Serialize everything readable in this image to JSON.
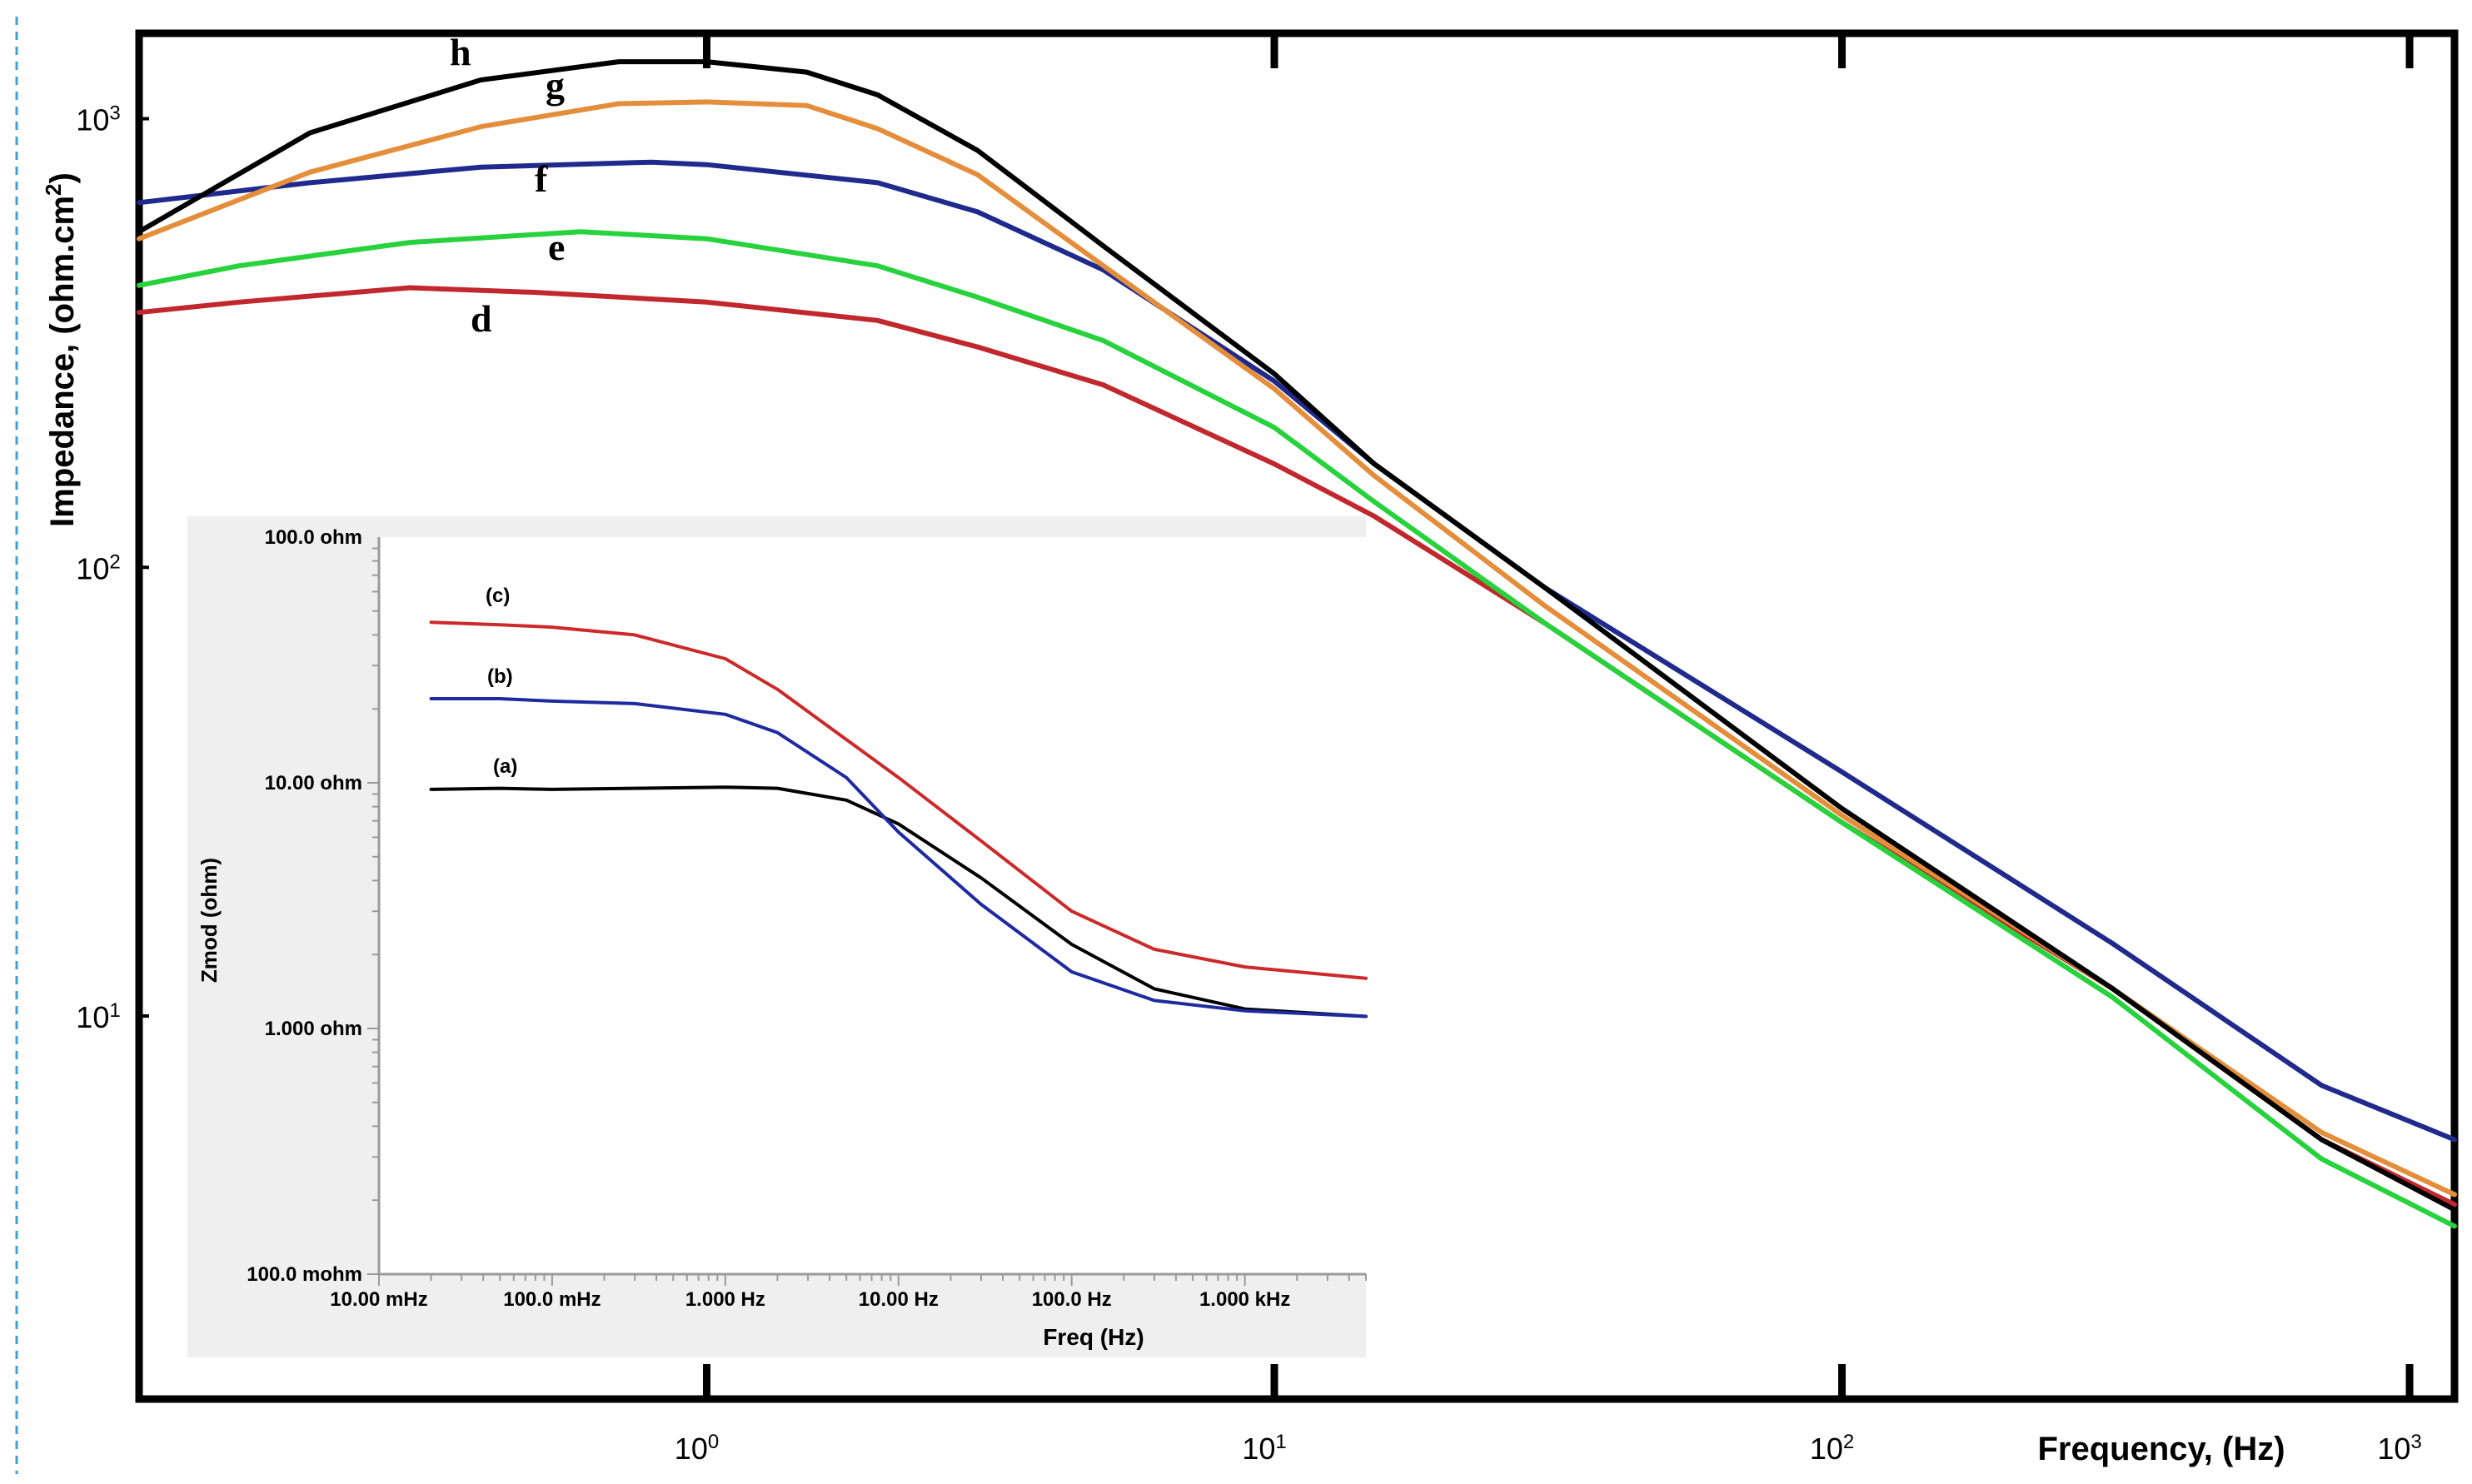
{
  "chart_data": [
    {
      "type": "line",
      "title": "",
      "xlabel": "Frequency, (Hz)",
      "ylabel": "Impedance, (ohm.cm",
      "ylabel_sup": "2",
      "ylabel_end": ")",
      "xscale": "log",
      "yscale": "log",
      "xlim": [
        0.1,
        1200
      ],
      "ylim": [
        1.4,
        1550
      ],
      "x_ticks": [
        {
          "base": "10",
          "exp": "0",
          "value": 1
        },
        {
          "base": "10",
          "exp": "1",
          "value": 10
        },
        {
          "base": "10",
          "exp": "2",
          "value": 100
        },
        {
          "base": "10",
          "exp": "3",
          "value": 1000
        }
      ],
      "y_ticks": [
        {
          "base": "10",
          "exp": "1",
          "value": 10
        },
        {
          "base": "10",
          "exp": "2",
          "value": 100
        },
        {
          "base": "10",
          "exp": "3",
          "value": 1000
        }
      ],
      "grid": false,
      "series": [
        {
          "name": "d",
          "color": "#c0282d",
          "x": [
            0.1,
            0.15,
            0.3,
            0.5,
            1,
            2,
            3,
            5,
            10,
            15,
            30,
            100,
            300,
            700,
            1200
          ],
          "y": [
            370,
            390,
            420,
            410,
            390,
            355,
            310,
            255,
            170,
            130,
            75,
            27,
            11.5,
            5.3,
            3.8
          ]
        },
        {
          "name": "e",
          "color": "#27d23c",
          "x": [
            0.1,
            0.15,
            0.3,
            0.6,
            1,
            2,
            3,
            5,
            10,
            15,
            30,
            100,
            300,
            700,
            1200
          ],
          "y": [
            425,
            470,
            530,
            560,
            540,
            470,
            400,
            320,
            205,
            140,
            75,
            27,
            11.0,
            4.8,
            3.4
          ]
        },
        {
          "name": "f",
          "color": "#1f2a8c",
          "x": [
            0.1,
            0.2,
            0.4,
            0.8,
            1,
            2,
            3,
            5,
            10,
            15,
            30,
            100,
            300,
            700,
            1200
          ],
          "y": [
            650,
            720,
            780,
            800,
            790,
            720,
            620,
            460,
            260,
            170,
            90,
            35,
            14.5,
            7.0,
            5.3
          ]
        },
        {
          "name": "g",
          "color": "#e48e3c",
          "x": [
            0.1,
            0.2,
            0.4,
            0.7,
            1,
            1.5,
            2,
            3,
            5,
            10,
            15,
            30,
            100,
            300,
            700,
            1200
          ],
          "y": [
            540,
            760,
            960,
            1080,
            1090,
            1070,
            950,
            750,
            470,
            250,
            160,
            82,
            28,
            11.5,
            5.5,
            4.0
          ]
        },
        {
          "name": "h",
          "color": "#000000",
          "x": [
            0.1,
            0.2,
            0.4,
            0.7,
            1,
            1.5,
            2,
            3,
            5,
            10,
            15,
            30,
            100,
            300,
            700,
            1200
          ],
          "y": [
            560,
            930,
            1220,
            1340,
            1340,
            1270,
            1130,
            850,
            520,
            270,
            170,
            90,
            29,
            11.5,
            5.3,
            3.7
          ]
        }
      ],
      "series_labels": [
        "h",
        "g",
        "f",
        "e",
        "d"
      ]
    },
    {
      "type": "line",
      "title": "",
      "xlabel": "Freq (Hz)",
      "ylabel": "Zmod (ohm)",
      "xscale": "log",
      "yscale": "log",
      "xlim": [
        0.01,
        5000
      ],
      "ylim": [
        0.1,
        100
      ],
      "x_ticks": [
        {
          "label": "10.00 mHz",
          "value": 0.01
        },
        {
          "label": "100.0 mHz",
          "value": 0.1
        },
        {
          "label": "1.000 Hz",
          "value": 1
        },
        {
          "label": "10.00 Hz",
          "value": 10
        },
        {
          "label": "100.0 Hz",
          "value": 100
        },
        {
          "label": "1.000 kHz",
          "value": 1000
        }
      ],
      "y_ticks": [
        {
          "label": "100.0 ohm",
          "value": 100
        },
        {
          "label": "10.00 ohm",
          "value": 10
        },
        {
          "label": "1.000 ohm",
          "value": 1
        },
        {
          "label": "100.0 mohm",
          "value": 0.1
        }
      ],
      "grid": false,
      "series": [
        {
          "name": "(a)",
          "color": "#000000",
          "x": [
            0.02,
            0.05,
            0.1,
            0.3,
            1,
            2,
            5,
            10,
            30,
            100,
            300,
            1000,
            5000
          ],
          "y": [
            9.4,
            9.5,
            9.4,
            9.5,
            9.6,
            9.5,
            8.5,
            6.8,
            4.1,
            2.2,
            1.45,
            1.2,
            1.12
          ]
        },
        {
          "name": "(b)",
          "color": "#1e2aa0",
          "x": [
            0.02,
            0.05,
            0.1,
            0.3,
            1,
            2,
            5,
            10,
            30,
            100,
            300,
            1000,
            5000
          ],
          "y": [
            22,
            22,
            21.5,
            21,
            19,
            16,
            10.5,
            6.3,
            3.2,
            1.7,
            1.3,
            1.18,
            1.12
          ]
        },
        {
          "name": "(c)",
          "color": "#cc2a2a",
          "x": [
            0.02,
            0.05,
            0.1,
            0.3,
            1,
            2,
            5,
            10,
            30,
            100,
            300,
            1000,
            5000
          ],
          "y": [
            45,
            44,
            43,
            40,
            32,
            24,
            15,
            10.5,
            5.8,
            3.0,
            2.1,
            1.78,
            1.6
          ]
        }
      ],
      "series_labels": [
        "(c)",
        "(b)",
        "(a)"
      ]
    }
  ]
}
